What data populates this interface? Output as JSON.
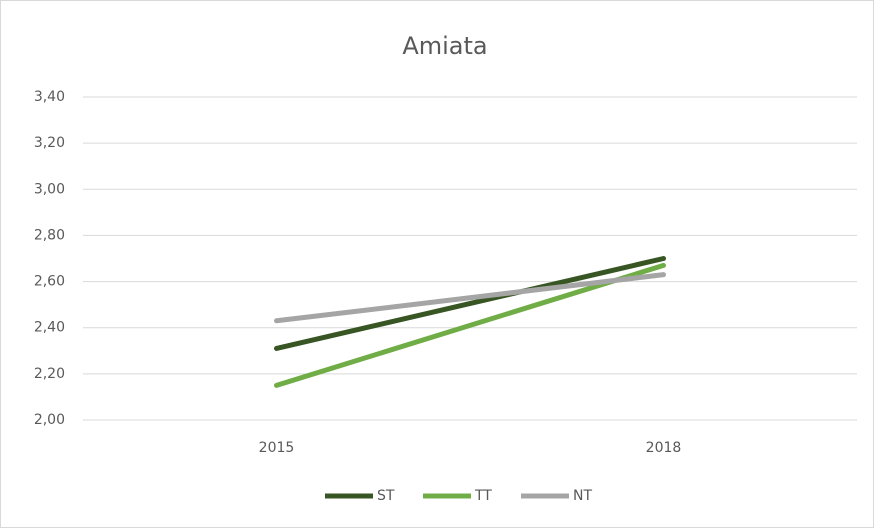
{
  "chart_data": {
    "type": "line",
    "title": "Amiata",
    "categories": [
      "2015",
      "2018"
    ],
    "series": [
      {
        "name": "ST",
        "color": "#375623",
        "values": [
          2.31,
          2.7
        ]
      },
      {
        "name": "TT",
        "color": "#70ad47",
        "values": [
          2.15,
          2.67
        ]
      },
      {
        "name": "NT",
        "color": "#a5a5a5",
        "values": [
          2.43,
          2.63
        ]
      }
    ],
    "ylim": [
      2.0,
      3.4
    ],
    "yticks": [
      {
        "value": 2.0,
        "label": "2,00"
      },
      {
        "value": 2.2,
        "label": "2,20"
      },
      {
        "value": 2.4,
        "label": "2,40"
      },
      {
        "value": 2.6,
        "label": "2,60"
      },
      {
        "value": 2.8,
        "label": "2,80"
      },
      {
        "value": 3.0,
        "label": "3,00"
      },
      {
        "value": 3.2,
        "label": "3,20"
      },
      {
        "value": 3.4,
        "label": "3,40"
      }
    ],
    "grid": true,
    "legend": "bottom"
  }
}
